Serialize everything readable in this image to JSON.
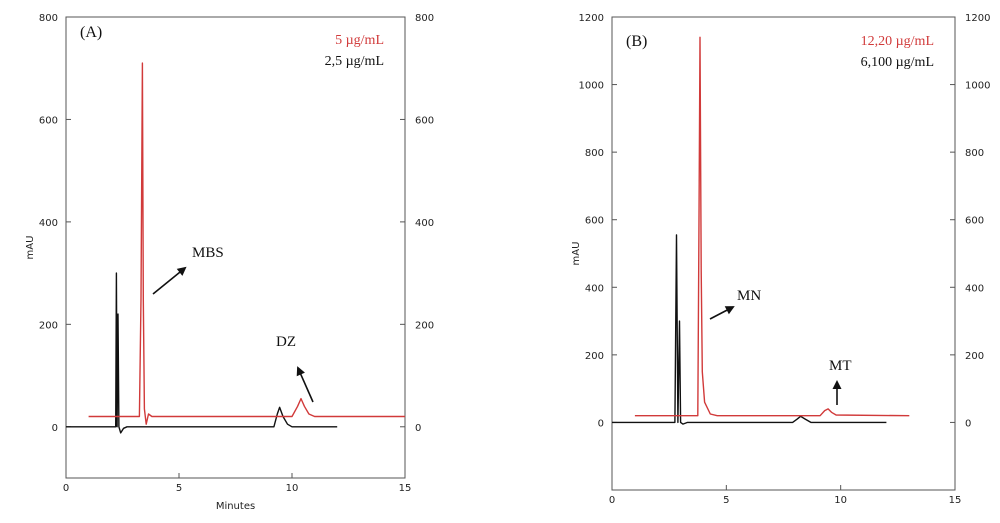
{
  "chart_data": [
    {
      "type": "line",
      "panel_label": "(A)",
      "xlabel": "Minutes",
      "ylabel": "mAU",
      "xlim": [
        0,
        15
      ],
      "ylim": [
        -100,
        800
      ],
      "x_ticks": [
        "0",
        "5",
        "10",
        "15"
      ],
      "y_ticks": [
        "0",
        "200",
        "400",
        "600",
        "800"
      ],
      "legend": [
        "5 µg/mL",
        "2,5 µg/mL"
      ],
      "colors": [
        "#d13a3a",
        "#111111"
      ],
      "annotations": [
        "MBS",
        "DZ"
      ],
      "series": [
        {
          "name": "5 µg/mL",
          "color": "#d13a3a",
          "x": [
            1.0,
            3.25,
            3.32,
            3.38,
            3.42,
            3.47,
            3.55,
            3.65,
            3.8,
            4.0,
            10.0,
            10.25,
            10.4,
            10.55,
            10.75,
            11.0,
            15.0
          ],
          "y": [
            20,
            20,
            250,
            710,
            250,
            35,
            5,
            25,
            20,
            20,
            20,
            40,
            55,
            40,
            25,
            20,
            20
          ]
        },
        {
          "name": "2,5 µg/mL",
          "color": "#111111",
          "x": [
            0,
            2.2,
            2.23,
            2.26,
            2.3,
            2.34,
            2.42,
            2.55,
            2.7,
            9.2,
            9.35,
            9.45,
            9.6,
            9.8,
            10.0,
            12.0
          ],
          "y": [
            0,
            0,
            300,
            0,
            220,
            0,
            -12,
            -3,
            0,
            0,
            25,
            38,
            20,
            5,
            0,
            0
          ]
        }
      ]
    },
    {
      "type": "line",
      "panel_label": "(B)",
      "xlabel": "",
      "ylabel": "mAU",
      "xlim": [
        0,
        15
      ],
      "ylim": [
        -200,
        1200
      ],
      "x_ticks": [
        "0",
        "5",
        "10",
        "15"
      ],
      "y_ticks": [
        "0",
        "200",
        "400",
        "600",
        "800",
        "1000",
        "1200"
      ],
      "legend": [
        "12,20 µg/mL",
        "6,100 µg/mL"
      ],
      "colors": [
        "#d13a3a",
        "#111111"
      ],
      "annotations": [
        "MN",
        "MT"
      ],
      "series": [
        {
          "name": "12,20 µg/mL",
          "color": "#d13a3a",
          "x": [
            1.0,
            3.75,
            3.8,
            3.85,
            3.9,
            3.95,
            4.05,
            4.3,
            4.6,
            9.1,
            9.3,
            9.45,
            9.6,
            9.8,
            13.0
          ],
          "y": [
            20,
            20,
            550,
            1140,
            450,
            150,
            60,
            25,
            20,
            20,
            35,
            40,
            30,
            22,
            20
          ]
        },
        {
          "name": "6,100 µg/mL",
          "color": "#111111",
          "x": [
            0,
            2.75,
            2.82,
            2.88,
            2.95,
            3.0,
            3.1,
            3.3,
            7.9,
            8.1,
            8.25,
            8.45,
            8.7,
            12.0
          ],
          "y": [
            0,
            0,
            555,
            0,
            300,
            0,
            -5,
            0,
            0,
            10,
            18,
            10,
            0,
            0
          ]
        }
      ]
    }
  ]
}
